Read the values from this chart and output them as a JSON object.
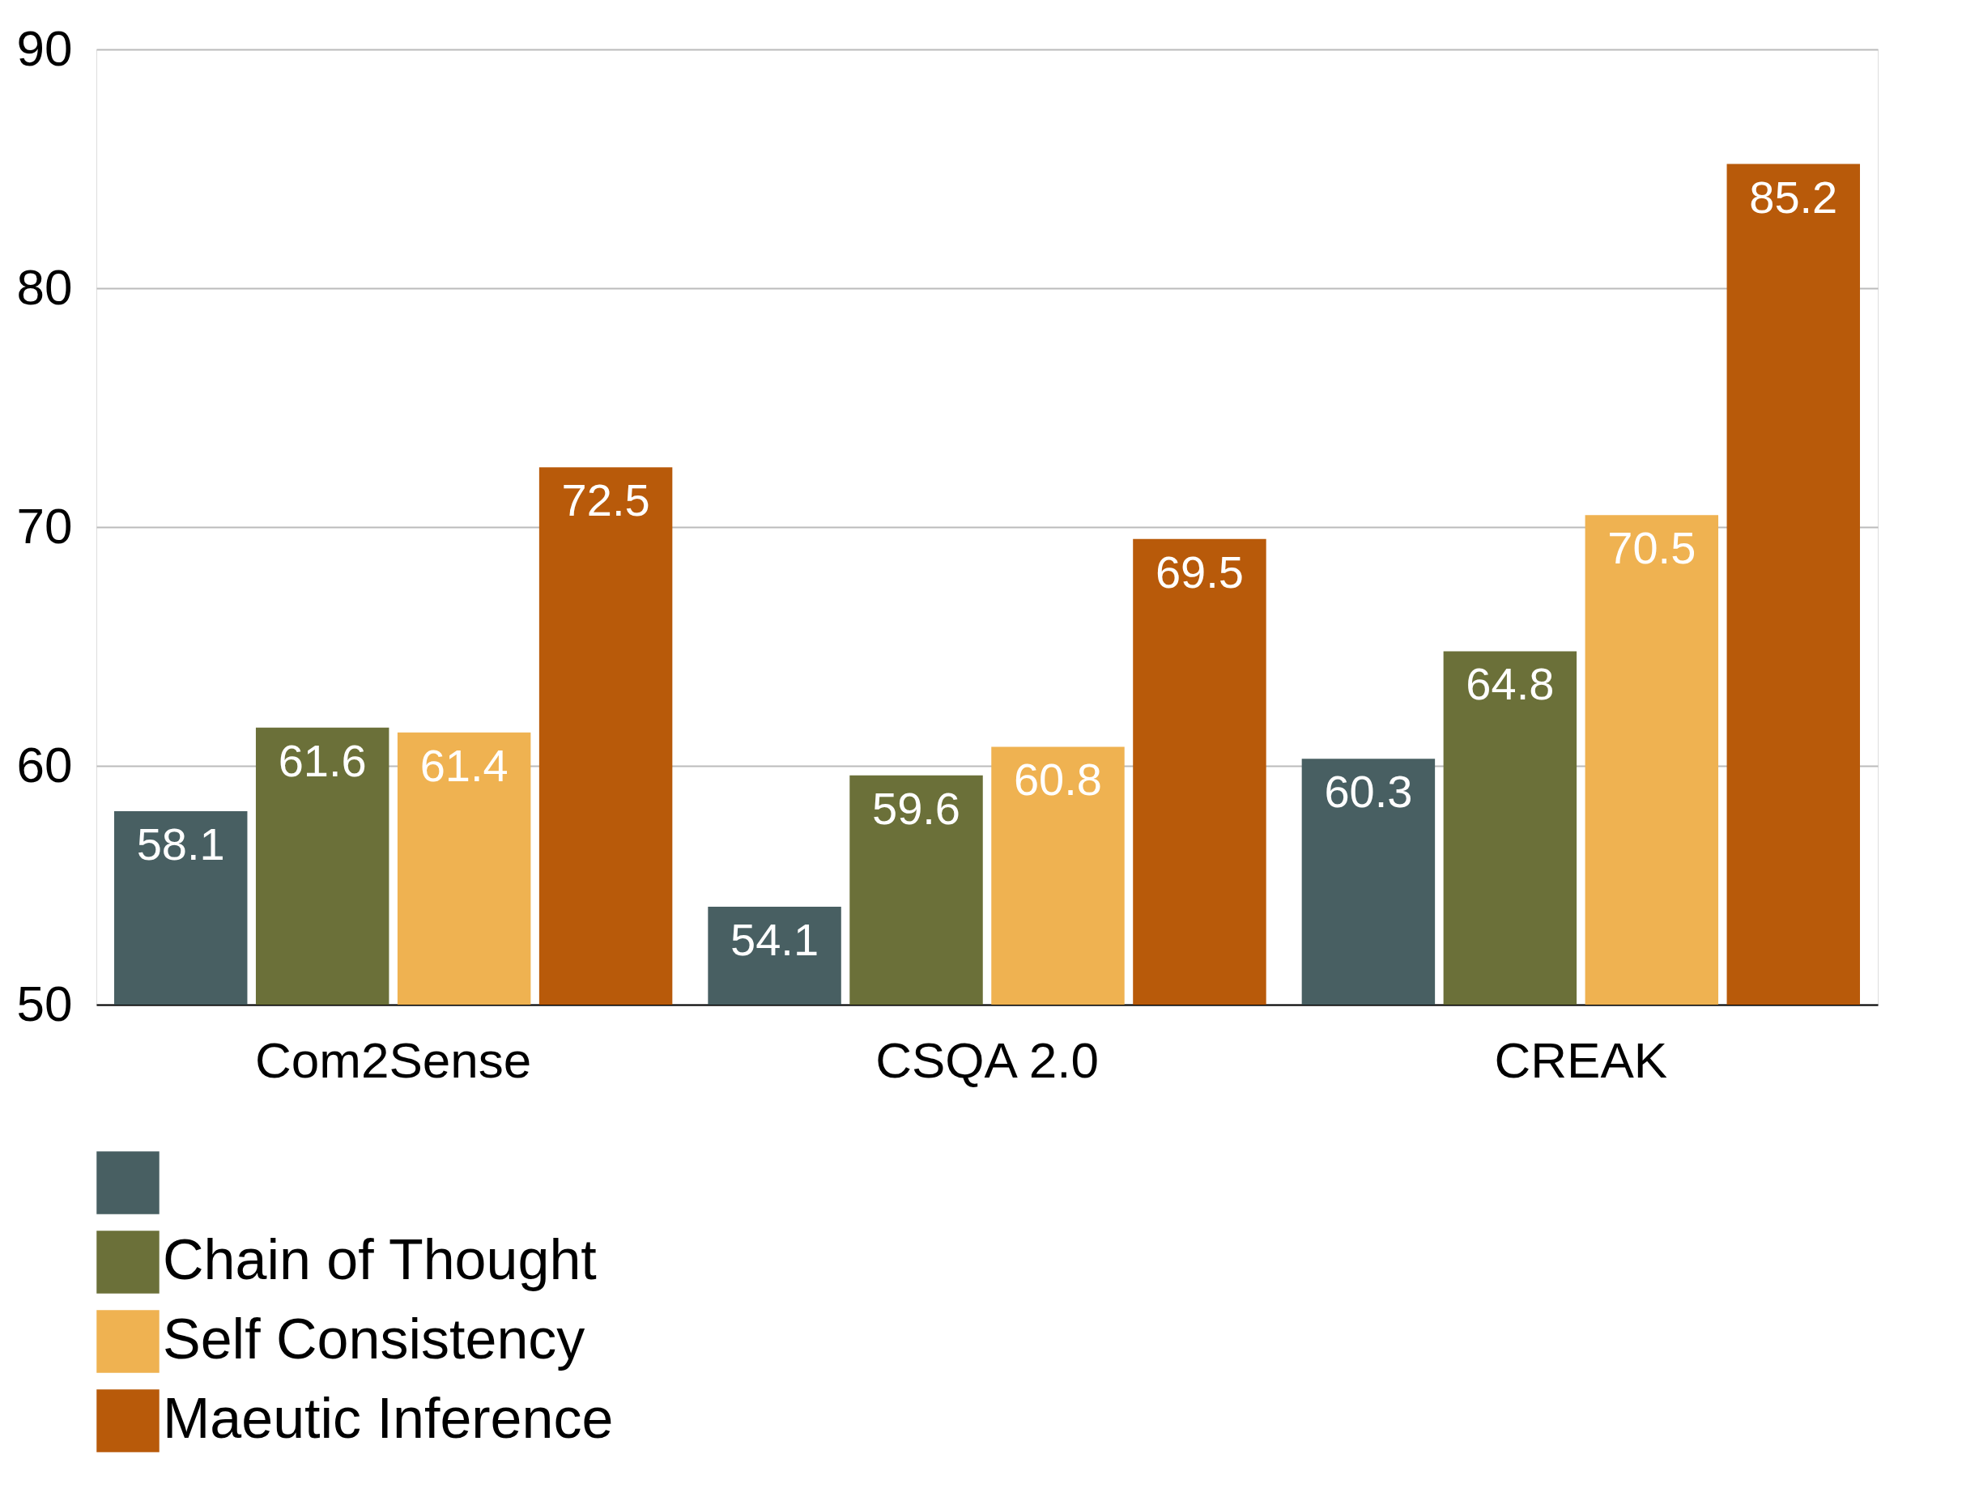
{
  "chart_data": {
    "type": "bar",
    "categories": [
      "Com2Sense",
      "CSQA 2.0",
      "CREAK"
    ],
    "series": [
      {
        "color": "#485f62",
        "values": [
          58.1,
          54.1,
          60.3
        ]
      },
      {
        "name": "Chain of Thought",
        "color": "#6b7039",
        "values": [
          61.6,
          59.6,
          64.8
        ]
      },
      {
        "name": "Self Consistency",
        "color": "#efb251",
        "values": [
          61.4,
          60.8,
          70.5
        ]
      },
      {
        "name": "Maeutic Inference",
        "color": "#b85a0a",
        "values": [
          72.5,
          69.5,
          85.2
        ]
      }
    ],
    "ylim": [
      50,
      90
    ],
    "yticks": [
      50,
      60,
      70,
      80,
      90
    ],
    "grid": "y",
    "legend": "bottom",
    "data_labels": true
  }
}
